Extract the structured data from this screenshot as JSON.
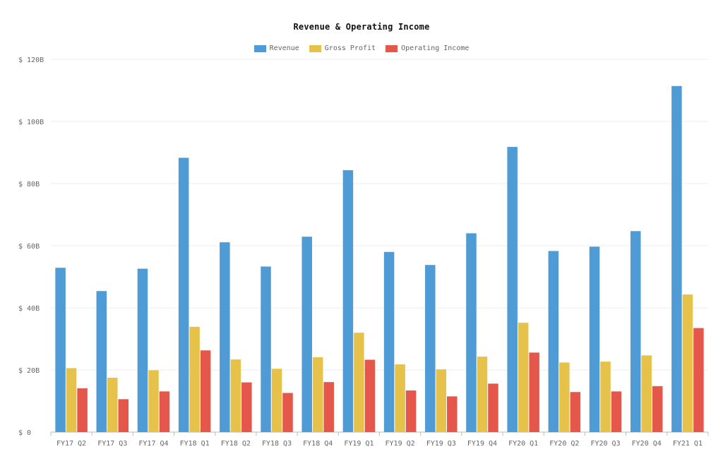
{
  "chart_data": {
    "type": "bar",
    "title": "Revenue & Operating Income",
    "categories": [
      "FY17 Q2",
      "FY17 Q3",
      "FY17 Q4",
      "FY18 Q1",
      "FY18 Q2",
      "FY18 Q3",
      "FY18 Q4",
      "FY19 Q1",
      "FY19 Q2",
      "FY19 Q3",
      "FY19 Q4",
      "FY20 Q1",
      "FY20 Q2",
      "FY20 Q3",
      "FY20 Q4",
      "FY21 Q1"
    ],
    "series": [
      {
        "name": "Revenue",
        "color": "#4e9bd6",
        "values": [
          52.9,
          45.4,
          52.6,
          88.3,
          61.1,
          53.3,
          62.9,
          84.3,
          58.0,
          53.8,
          64.0,
          91.8,
          58.3,
          59.7,
          64.7,
          111.4
        ]
      },
      {
        "name": "Gross Profit",
        "color": "#e7c24b",
        "values": [
          20.6,
          17.5,
          19.9,
          33.9,
          23.4,
          20.4,
          24.1,
          32.0,
          21.8,
          20.2,
          24.3,
          35.2,
          22.4,
          22.7,
          24.7,
          44.3
        ]
      },
      {
        "name": "Operating Income",
        "color": "#e4574a",
        "values": [
          14.1,
          10.6,
          13.1,
          26.3,
          16.0,
          12.6,
          16.1,
          23.3,
          13.4,
          11.5,
          15.6,
          25.6,
          12.9,
          13.1,
          14.8,
          33.5
        ]
      }
    ],
    "y_ticks": [
      "$ 0",
      "$ 20B",
      "$ 40B",
      "$ 60B",
      "$ 80B",
      "$ 100B",
      "$ 120B"
    ],
    "ylim": [
      0,
      120
    ],
    "xlabel": "",
    "ylabel": "",
    "grid": true,
    "legend_position": "top-center"
  }
}
